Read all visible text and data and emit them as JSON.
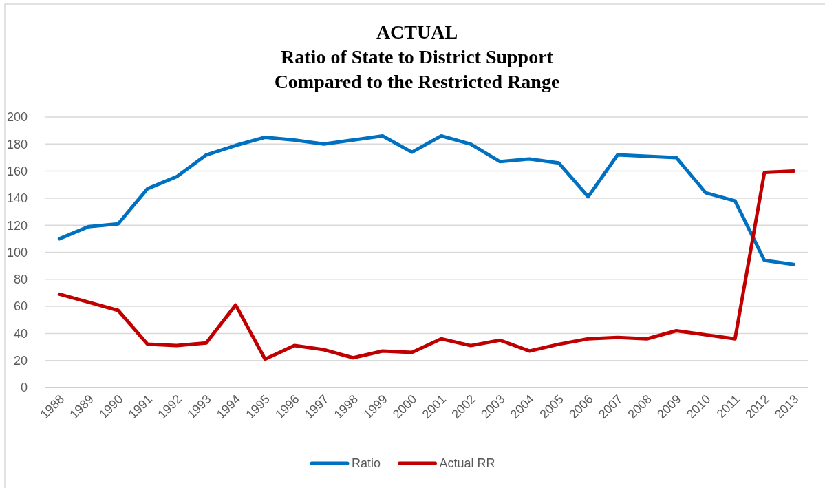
{
  "chart_data": {
    "type": "line",
    "title": "ACTUAL\nRatio of State to District Support\nCompared to the Restricted Range",
    "categories": [
      "1988",
      "1989",
      "1990",
      "1991",
      "1992",
      "1993",
      "1994",
      "1995",
      "1996",
      "1997",
      "1998",
      "1999",
      "2000",
      "2001",
      "2002",
      "2003",
      "2004",
      "2005",
      "2006",
      "2007",
      "2008",
      "2009",
      "2010",
      "2011",
      "2012",
      "2013"
    ],
    "series": [
      {
        "name": "Ratio",
        "color": "#0070c0",
        "values": [
          110,
          119,
          121,
          147,
          156,
          172,
          179,
          185,
          183,
          180,
          183,
          186,
          174,
          186,
          180,
          167,
          169,
          166,
          141,
          172,
          171,
          170,
          144,
          138,
          94,
          91
        ]
      },
      {
        "name": "Actual RR",
        "color": "#c00000",
        "values": [
          69,
          63,
          57,
          32,
          31,
          33,
          61,
          21,
          31,
          28,
          22,
          27,
          26,
          36,
          31,
          35,
          27,
          32,
          36,
          37,
          36,
          42,
          39,
          36,
          159,
          160
        ]
      }
    ],
    "ylim": [
      0,
      200
    ],
    "yticks": [
      0,
      20,
      40,
      60,
      80,
      100,
      120,
      140,
      160,
      180,
      200
    ],
    "grid": "y",
    "legend": "bottom",
    "marker": "none",
    "line_style": "solid"
  }
}
